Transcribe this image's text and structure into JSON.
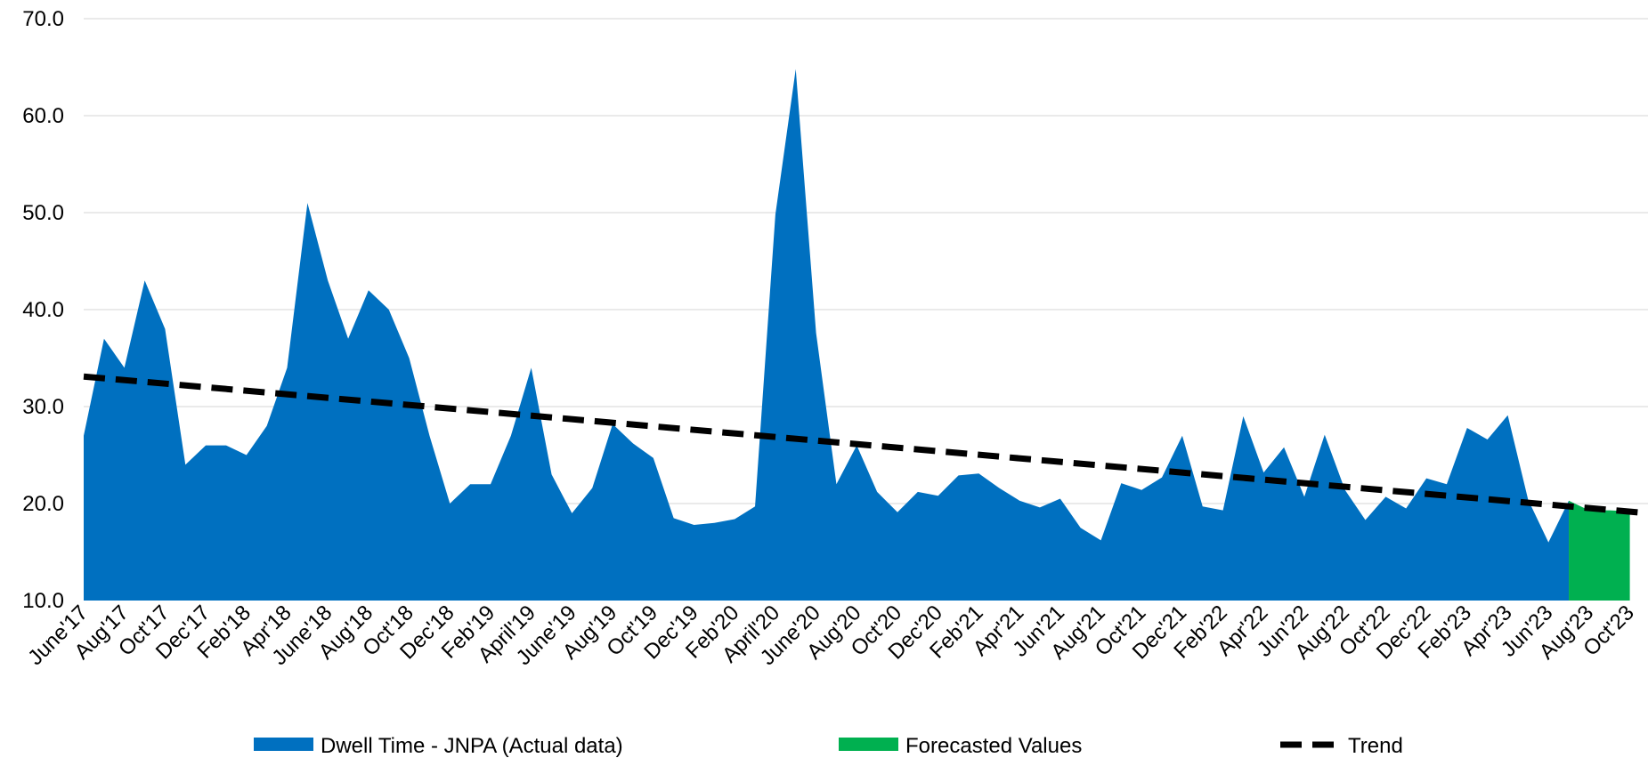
{
  "chart_data": {
    "type": "area",
    "title": "",
    "xlabel": "",
    "ylabel": "",
    "ylim": [
      10,
      70
    ],
    "y_ticks": [
      "10.0",
      "20.0",
      "30.0",
      "40.0",
      "50.0",
      "60.0",
      "70.0"
    ],
    "grid": "horizontal",
    "legend_position": "bottom",
    "x_tick_labels": [
      "June'17",
      "Aug'17",
      "Oct'17",
      "Dec'17",
      "Feb'18",
      "Apr'18",
      "June'18",
      "Aug'18",
      "Oct'18",
      "Dec'18",
      "Feb'19",
      "April'19",
      "June'19",
      "Aug'19",
      "Oct'19",
      "Dec'19",
      "Feb'20",
      "April'20",
      "June'20",
      "Aug'20",
      "Oct'20",
      "Dec'20",
      "Feb'21",
      "Apr'21",
      "Jun'21",
      "Aug'21",
      "Oct'21",
      "Dec'21",
      "Feb'22",
      "Apr'22",
      "Jun'22",
      "Aug'22",
      "Oct'22",
      "Dec'22",
      "Feb'23",
      "Apr'23",
      "Jun'23",
      "Aug'23",
      "Oct'23"
    ],
    "series": [
      {
        "name": "Dwell Time - JNPA (Actual data)",
        "color": "#0070C0",
        "values": [
          27,
          37,
          34,
          43,
          38,
          24,
          26,
          26,
          25,
          28,
          34,
          51,
          43,
          37,
          42,
          40,
          35,
          27,
          20,
          22,
          22,
          27,
          34,
          23,
          19,
          21.6,
          28.2,
          26.2,
          24.7,
          18.5,
          17.8,
          18,
          18.4,
          19.7,
          49.8,
          64.8,
          37.6,
          22,
          26,
          21.2,
          19.1,
          21.2,
          20.8,
          22.9,
          23.1,
          21.6,
          20.3,
          19.6,
          20.5,
          17.5,
          16.2,
          22.1,
          21.4,
          22.7,
          27,
          19.7,
          19.3,
          29,
          23.2,
          25.8,
          20.7,
          27.1,
          21.4,
          18.3,
          20.7,
          19.5,
          22.6,
          22,
          27.8,
          26.6,
          29.1,
          20.4,
          16,
          20.3
        ]
      },
      {
        "name": "Forecasted Values",
        "color": "#00B050",
        "start_index": 73,
        "values": [
          20.3,
          19.3,
          19.3,
          19.2
        ]
      },
      {
        "name": "Trend",
        "color": "#000000",
        "style": "dashed",
        "start_value": 33.1,
        "end_value": 19.0
      }
    ]
  }
}
